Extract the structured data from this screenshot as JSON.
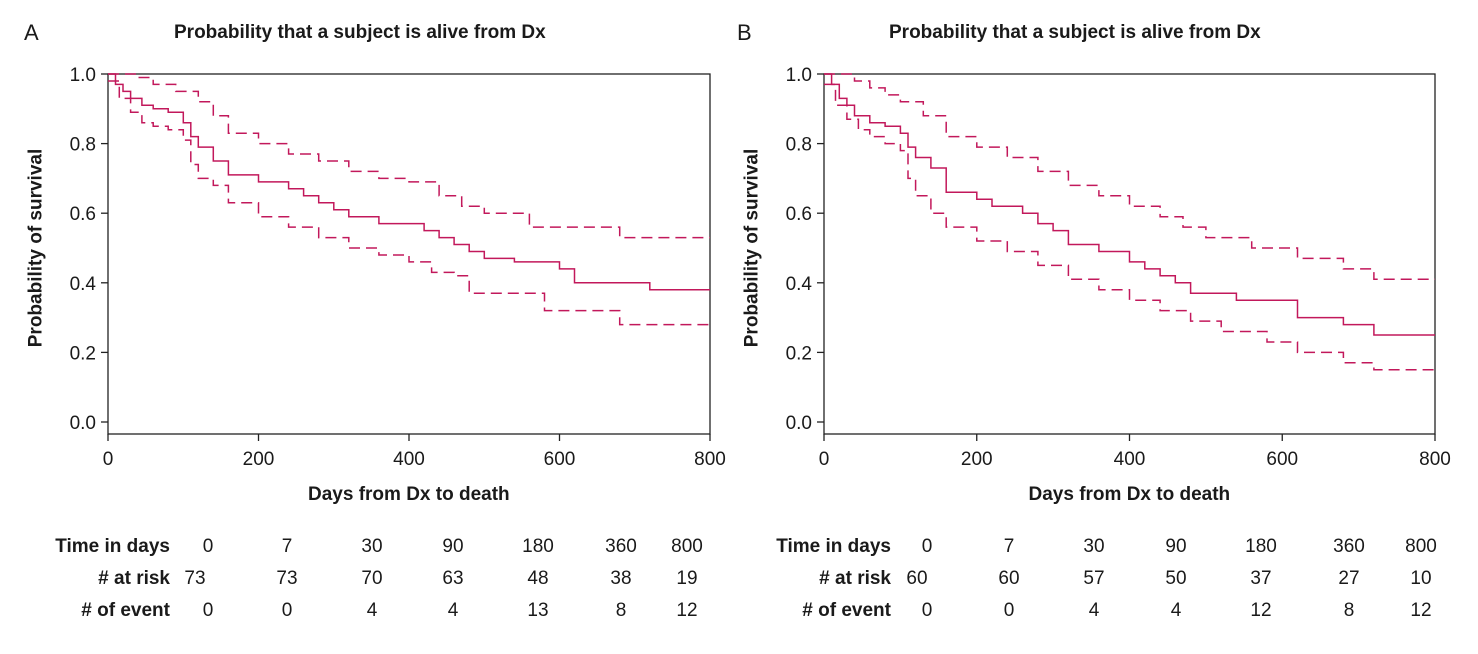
{
  "colors": {
    "curve": "#c2185b",
    "axis": "#222222",
    "text": "#1a1a1a"
  },
  "chart_data": [
    {
      "panel_letter": "A",
      "type": "line",
      "title": "Probability that a subject is alive from Dx",
      "xlabel": "Days from Dx to death",
      "ylabel": "Probability of survival",
      "xlim": [
        0,
        800
      ],
      "ylim": [
        0,
        1
      ],
      "xticks": [
        0,
        200,
        400,
        600,
        800
      ],
      "yticks": [
        0.0,
        0.2,
        0.4,
        0.6,
        0.8,
        1.0
      ],
      "ytick_labels": [
        "0.0",
        "0.2",
        "0.4",
        "0.6",
        "0.8",
        "1.0"
      ],
      "grid": false,
      "series": [
        {
          "style": "solid",
          "x": [
            0,
            10,
            20,
            30,
            45,
            60,
            80,
            100,
            110,
            120,
            140,
            160,
            200,
            240,
            260,
            280,
            300,
            320,
            360,
            420,
            440,
            460,
            480,
            500,
            540,
            600,
            620,
            680,
            720,
            800
          ],
          "y": [
            1.0,
            0.97,
            0.95,
            0.93,
            0.91,
            0.9,
            0.89,
            0.86,
            0.82,
            0.79,
            0.75,
            0.71,
            0.69,
            0.67,
            0.65,
            0.63,
            0.61,
            0.59,
            0.57,
            0.55,
            0.53,
            0.51,
            0.49,
            0.47,
            0.46,
            0.44,
            0.4,
            0.4,
            0.38,
            0.38
          ]
        },
        {
          "style": "dashed",
          "x": [
            0,
            20,
            40,
            60,
            90,
            120,
            140,
            160,
            200,
            240,
            280,
            320,
            360,
            400,
            440,
            470,
            500,
            560,
            620,
            680,
            800
          ],
          "y": [
            1.0,
            1.0,
            0.99,
            0.97,
            0.95,
            0.92,
            0.88,
            0.83,
            0.8,
            0.77,
            0.75,
            0.72,
            0.7,
            0.69,
            0.65,
            0.62,
            0.6,
            0.56,
            0.56,
            0.53,
            0.53
          ]
        },
        {
          "style": "dashed",
          "x": [
            0,
            15,
            30,
            45,
            60,
            80,
            100,
            110,
            120,
            140,
            160,
            200,
            240,
            280,
            320,
            360,
            400,
            430,
            460,
            480,
            540,
            580,
            620,
            680,
            800
          ],
          "y": [
            0.98,
            0.93,
            0.89,
            0.86,
            0.85,
            0.84,
            0.81,
            0.74,
            0.7,
            0.68,
            0.63,
            0.59,
            0.56,
            0.53,
            0.5,
            0.48,
            0.46,
            0.43,
            0.42,
            0.37,
            0.37,
            0.32,
            0.32,
            0.28,
            0.28
          ]
        }
      ],
      "risk_table": {
        "rows": [
          {
            "label": "Time in days",
            "values": [
              "0",
              "7",
              "30",
              "90",
              "180",
              "360",
              "800"
            ]
          },
          {
            "label": "# at risk",
            "values": [
              "73",
              "73",
              "70",
              "63",
              "48",
              "38",
              "19"
            ]
          },
          {
            "label": "# of event",
            "values": [
              "0",
              "0",
              "4",
              "4",
              "13",
              "8",
              "12"
            ]
          }
        ]
      }
    },
    {
      "panel_letter": "B",
      "type": "line",
      "title": "Probability that a subject is alive from Dx",
      "xlabel": "Days from Dx to death",
      "ylabel": "Probability of survival",
      "xlim": [
        0,
        800
      ],
      "ylim": [
        0,
        1
      ],
      "xticks": [
        0,
        200,
        400,
        600,
        800
      ],
      "yticks": [
        0.0,
        0.2,
        0.4,
        0.6,
        0.8,
        1.0
      ],
      "ytick_labels": [
        "0.0",
        "0.2",
        "0.4",
        "0.6",
        "0.8",
        "1.0"
      ],
      "grid": false,
      "series": [
        {
          "style": "solid",
          "x": [
            0,
            10,
            20,
            30,
            40,
            60,
            80,
            100,
            110,
            120,
            140,
            160,
            200,
            220,
            260,
            280,
            300,
            320,
            360,
            400,
            420,
            440,
            460,
            480,
            500,
            540,
            600,
            620,
            680,
            720,
            800
          ],
          "y": [
            1.0,
            0.97,
            0.93,
            0.91,
            0.88,
            0.86,
            0.85,
            0.83,
            0.79,
            0.76,
            0.73,
            0.66,
            0.64,
            0.62,
            0.6,
            0.57,
            0.55,
            0.51,
            0.49,
            0.46,
            0.44,
            0.42,
            0.4,
            0.37,
            0.37,
            0.35,
            0.35,
            0.3,
            0.28,
            0.25,
            0.25
          ]
        },
        {
          "style": "dashed",
          "x": [
            0,
            20,
            40,
            60,
            80,
            100,
            130,
            160,
            200,
            240,
            280,
            320,
            360,
            400,
            440,
            470,
            500,
            560,
            620,
            680,
            720,
            800
          ],
          "y": [
            1.0,
            1.0,
            0.98,
            0.96,
            0.94,
            0.92,
            0.88,
            0.82,
            0.79,
            0.76,
            0.72,
            0.68,
            0.65,
            0.62,
            0.59,
            0.56,
            0.53,
            0.5,
            0.47,
            0.44,
            0.41,
            0.41
          ]
        },
        {
          "style": "dashed",
          "x": [
            0,
            15,
            30,
            45,
            60,
            80,
            100,
            110,
            120,
            140,
            160,
            200,
            240,
            280,
            320,
            360,
            400,
            440,
            480,
            520,
            580,
            620,
            680,
            720,
            800
          ],
          "y": [
            0.97,
            0.91,
            0.87,
            0.84,
            0.82,
            0.8,
            0.78,
            0.7,
            0.65,
            0.6,
            0.56,
            0.52,
            0.49,
            0.45,
            0.41,
            0.38,
            0.35,
            0.32,
            0.29,
            0.26,
            0.23,
            0.2,
            0.17,
            0.15,
            0.15
          ]
        }
      ],
      "risk_table": {
        "rows": [
          {
            "label": "Time in days",
            "values": [
              "0",
              "7",
              "30",
              "90",
              "180",
              "360",
              "800"
            ]
          },
          {
            "label": "# at risk",
            "values": [
              "60",
              "60",
              "57",
              "50",
              "37",
              "27",
              "10"
            ]
          },
          {
            "label": "# of event",
            "values": [
              "0",
              "0",
              "4",
              "4",
              "12",
              "8",
              "12"
            ]
          }
        ]
      }
    }
  ]
}
